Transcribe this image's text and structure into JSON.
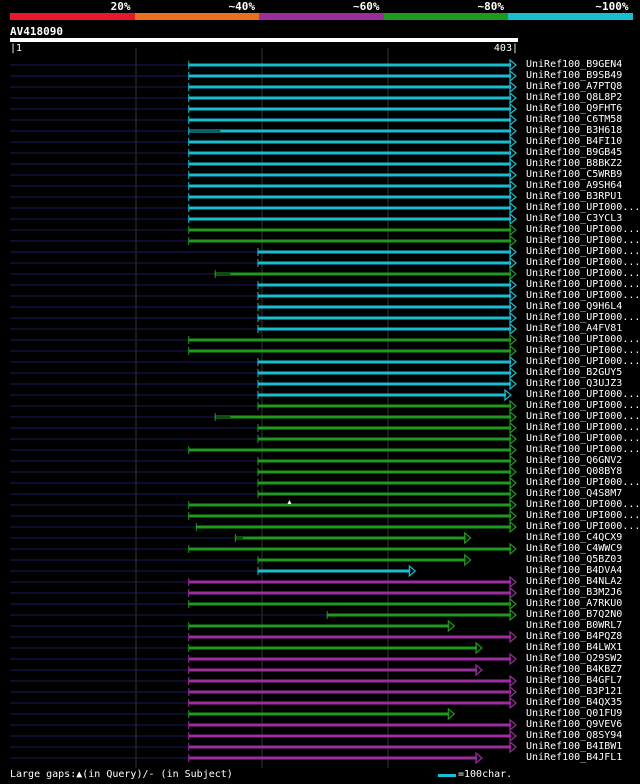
{
  "legend": {
    "segments": [
      {
        "label": "20%",
        "color": "#e8172b"
      },
      {
        "label": "~40%",
        "color": "#e8721c"
      },
      {
        "label": "~60%",
        "color": "#9b2d9e"
      },
      {
        "label": "~80%",
        "color": "#1e9a1e"
      },
      {
        "label": "~100%",
        "color": "#17becf"
      }
    ]
  },
  "query": {
    "name": "AV418090",
    "start": "1",
    "end": "403"
  },
  "colors": {
    "background": "#000000",
    "query_line": "#0b0b33",
    "grid": "#333333"
  },
  "hits": [
    {
      "name": "UniRef100_B9GEN4",
      "color": "cyan",
      "start": 143,
      "end": 403,
      "arrow": true
    },
    {
      "name": "UniRef100_B9SB49",
      "color": "cyan",
      "start": 143,
      "end": 403,
      "arrow": true
    },
    {
      "name": "UniRef100_A7PTQ8",
      "color": "cyan",
      "start": 143,
      "end": 403,
      "arrow": true
    },
    {
      "name": "UniRef100_Q8L8P2",
      "color": "cyan",
      "start": 143,
      "end": 403,
      "arrow": true
    },
    {
      "name": "UniRef100_Q9FHT6",
      "color": "cyan",
      "start": 143,
      "end": 403,
      "arrow": true
    },
    {
      "name": "UniRef100_C6TM58",
      "color": "cyan",
      "start": 143,
      "end": 403,
      "arrow": true
    },
    {
      "name": "UniRef100_B3H618",
      "color": "cyan",
      "start": 143,
      "end": 403,
      "arrow": true,
      "gap": 168
    },
    {
      "name": "UniRef100_B4FI10",
      "color": "cyan",
      "start": 143,
      "end": 403,
      "arrow": true
    },
    {
      "name": "UniRef100_B9GB45",
      "color": "cyan",
      "start": 143,
      "end": 403,
      "arrow": true
    },
    {
      "name": "UniRef100_B8BKZ2",
      "color": "cyan",
      "start": 143,
      "end": 403,
      "arrow": true
    },
    {
      "name": "UniRef100_C5WRB9",
      "color": "cyan",
      "start": 143,
      "end": 403,
      "arrow": true
    },
    {
      "name": "UniRef100_A9SH64",
      "color": "cyan",
      "start": 143,
      "end": 403,
      "arrow": true
    },
    {
      "name": "UniRef100_B3RPU1",
      "color": "cyan",
      "start": 143,
      "end": 403,
      "arrow": true
    },
    {
      "name": "UniRef100_UPI000...",
      "color": "cyan",
      "start": 143,
      "end": 403,
      "arrow": true
    },
    {
      "name": "UniRef100_C3YCL3",
      "color": "cyan",
      "start": 143,
      "end": 403,
      "arrow": true
    },
    {
      "name": "UniRef100_UPI000...",
      "color": "green",
      "start": 143,
      "end": 403,
      "arrow": true
    },
    {
      "name": "UniRef100_UPI000...",
      "color": "green",
      "start": 143,
      "end": 403,
      "arrow": true
    },
    {
      "name": "UniRef100_UPI000...",
      "color": "cyan",
      "start": 198,
      "end": 403,
      "arrow": true
    },
    {
      "name": "UniRef100_UPI000...",
      "color": "cyan",
      "start": 198,
      "end": 403,
      "arrow": true
    },
    {
      "name": "UniRef100_UPI000...",
      "color": "green",
      "start": 164,
      "end": 403,
      "arrow": true,
      "gap": 176
    },
    {
      "name": "UniRef100_UPI000...",
      "color": "cyan",
      "start": 198,
      "end": 403,
      "arrow": true
    },
    {
      "name": "UniRef100_UPI000...",
      "color": "cyan",
      "start": 198,
      "end": 403,
      "arrow": true
    },
    {
      "name": "UniRef100_Q9H6L4",
      "color": "cyan",
      "start": 198,
      "end": 403,
      "arrow": true
    },
    {
      "name": "UniRef100_UPI000...",
      "color": "cyan",
      "start": 198,
      "end": 403,
      "arrow": true
    },
    {
      "name": "UniRef100_A4FV81",
      "color": "cyan",
      "start": 198,
      "end": 403,
      "arrow": true
    },
    {
      "name": "UniRef100_UPI000...",
      "color": "green",
      "start": 143,
      "end": 403,
      "arrow": true
    },
    {
      "name": "UniRef100_UPI000...",
      "color": "green",
      "start": 143,
      "end": 403,
      "arrow": true
    },
    {
      "name": "UniRef100_UPI000...",
      "color": "cyan",
      "start": 198,
      "end": 403,
      "arrow": true
    },
    {
      "name": "UniRef100_B2GUY5",
      "color": "cyan",
      "start": 198,
      "end": 403,
      "arrow": true
    },
    {
      "name": "UniRef100_Q3UJZ3",
      "color": "cyan",
      "start": 198,
      "end": 403,
      "arrow": true
    },
    {
      "name": "UniRef100_UPI000...",
      "color": "cyan",
      "start": 198,
      "end": 399,
      "arrow": true
    },
    {
      "name": "UniRef100_UPI000...",
      "color": "green",
      "start": 198,
      "end": 403,
      "arrow": true
    },
    {
      "name": "UniRef100_UPI000...",
      "color": "green",
      "start": 164,
      "end": 403,
      "arrow": true,
      "gap": 176
    },
    {
      "name": "UniRef100_UPI000...",
      "color": "green",
      "start": 198,
      "end": 403,
      "arrow": true
    },
    {
      "name": "UniRef100_UPI000...",
      "color": "green",
      "start": 198,
      "end": 403,
      "arrow": true
    },
    {
      "name": "UniRef100_UPI000...",
      "color": "green",
      "start": 143,
      "end": 403,
      "arrow": true
    },
    {
      "name": "UniRef100_Q6GNV2",
      "color": "green",
      "start": 198,
      "end": 403,
      "arrow": true
    },
    {
      "name": "UniRef100_Q08BY8",
      "color": "green",
      "start": 198,
      "end": 403,
      "arrow": true
    },
    {
      "name": "UniRef100_UPI000...",
      "color": "green",
      "start": 198,
      "end": 403,
      "arrow": true
    },
    {
      "name": "UniRef100_Q4S8M7",
      "color": "green",
      "start": 198,
      "end": 403,
      "arrow": true
    },
    {
      "name": "UniRef100_UPI000...",
      "color": "green",
      "start": 143,
      "end": 403,
      "arrow": true,
      "query_gap": 223
    },
    {
      "name": "UniRef100_UPI000...",
      "color": "green",
      "start": 143,
      "end": 403,
      "arrow": true
    },
    {
      "name": "UniRef100_UPI000...",
      "color": "green",
      "start": 149,
      "end": 403,
      "arrow": true
    },
    {
      "name": "UniRef100_C4QCX9",
      "color": "green",
      "start": 180,
      "end": 367,
      "arrow": true,
      "gap": 186
    },
    {
      "name": "UniRef100_C4WWC9",
      "color": "green",
      "start": 143,
      "end": 403,
      "arrow": true
    },
    {
      "name": "UniRef100_Q5BZ03",
      "color": "green",
      "start": 198,
      "end": 367,
      "arrow": true
    },
    {
      "name": "UniRef100_B4DVA4",
      "color": "cyan",
      "start": 198,
      "end": 323,
      "arrow": true
    },
    {
      "name": "UniRef100_B4NLA2",
      "color": "purple",
      "start": 143,
      "end": 403,
      "arrow": true
    },
    {
      "name": "UniRef100_B3M2J6",
      "color": "purple",
      "start": 143,
      "end": 403,
      "arrow": true
    },
    {
      "name": "UniRef100_A7RKU0",
      "color": "green",
      "start": 143,
      "end": 403,
      "arrow": true
    },
    {
      "name": "UniRef100_B7Q2N0",
      "color": "green",
      "start": 253,
      "end": 403,
      "arrow": true,
      "start_tick": true
    },
    {
      "name": "UniRef100_B0WRL7",
      "color": "green",
      "start": 143,
      "end": 354,
      "arrow": true
    },
    {
      "name": "UniRef100_B4PQZ8",
      "color": "purple",
      "start": 143,
      "end": 403,
      "arrow": true
    },
    {
      "name": "UniRef100_B4LWX1",
      "color": "green",
      "start": 143,
      "end": 376,
      "arrow": true
    },
    {
      "name": "UniRef100_Q29SW2",
      "color": "purple",
      "start": 143,
      "end": 403,
      "arrow": true
    },
    {
      "name": "UniRef100_B4KBZ7",
      "color": "purple",
      "start": 143,
      "end": 376,
      "arrow": true
    },
    {
      "name": "UniRef100_B4GFL7",
      "color": "purple",
      "start": 143,
      "end": 403,
      "arrow": true
    },
    {
      "name": "UniRef100_B3P121",
      "color": "purple",
      "start": 143,
      "end": 403,
      "arrow": true
    },
    {
      "name": "UniRef100_B4QX35",
      "color": "purple",
      "start": 143,
      "end": 403,
      "arrow": true
    },
    {
      "name": "UniRef100_Q01FU9",
      "color": "green",
      "start": 143,
      "end": 354,
      "arrow": true
    },
    {
      "name": "UniRef100_Q9VEV6",
      "color": "purple",
      "start": 143,
      "end": 403,
      "arrow": true
    },
    {
      "name": "UniRef100_Q8SY94",
      "color": "purple",
      "start": 143,
      "end": 403,
      "arrow": true
    },
    {
      "name": "UniRef100_B4IBW1",
      "color": "purple",
      "start": 143,
      "end": 403,
      "arrow": true
    },
    {
      "name": "UniRef100_B4JFL1",
      "color": "purple",
      "start": 143,
      "end": 376,
      "arrow": true
    }
  ],
  "hit_colors": {
    "cyan": "#17becf",
    "green": "#1e9a1e",
    "purple": "#9b2d9e"
  },
  "footer": {
    "gaps_label": "Large gaps:",
    "query_gap_text": "(in Query)/",
    "subject_gap_symbol": "-",
    "subject_gap_text": " (in Subject)",
    "scale_text": "=100char."
  }
}
